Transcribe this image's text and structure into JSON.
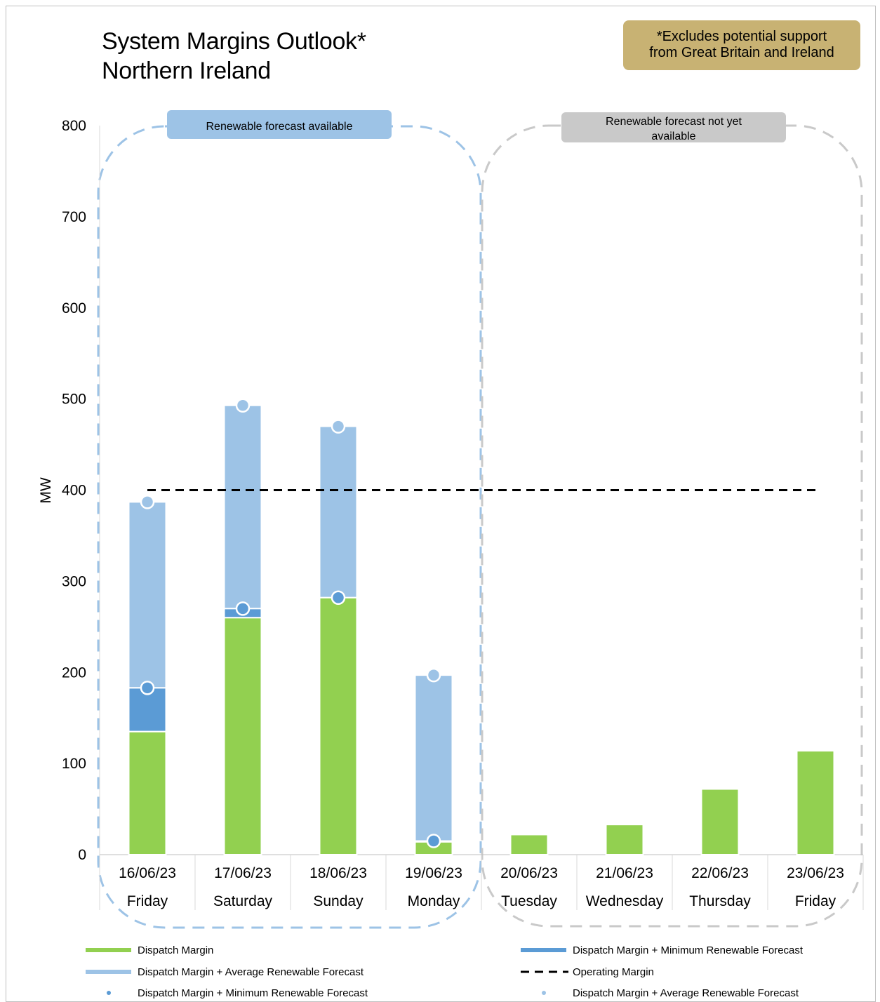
{
  "title_line1": "System Margins Outlook*",
  "title_line2": "Northern Ireland",
  "note_line1": "*Excludes potential support",
  "note_line2": "from Great Britain and Ireland",
  "region_labels": {
    "available": "Renewable forecast available",
    "not_available_line1": "Renewable forecast not yet",
    "not_available_line2": "available"
  },
  "colors": {
    "dispatch": "#92d050",
    "minimum": "#5b9bd5",
    "average": "#9dc3e6",
    "available_region": "#9dc3e6",
    "not_available_region": "#c9c9c9",
    "operating": "#000000",
    "note_box": "#c8b273"
  },
  "chart_data": {
    "type": "bar",
    "ylabel": "MW",
    "ylim": [
      0,
      800
    ],
    "yticks": [
      0,
      100,
      200,
      300,
      400,
      500,
      600,
      700,
      800
    ],
    "categories": [
      "16/06/23",
      "17/06/23",
      "18/06/23",
      "19/06/23",
      "20/06/23",
      "21/06/23",
      "22/06/23",
      "23/06/23"
    ],
    "days": [
      "Friday",
      "Saturday",
      "Sunday",
      "Monday",
      "Tuesday",
      "Wednesday",
      "Thursday",
      "Friday"
    ],
    "series": [
      {
        "name": "Dispatch Margin",
        "values": [
          135,
          260,
          282,
          14,
          22,
          33,
          72,
          114
        ]
      },
      {
        "name": "Dispatch Margin + Minimum Renewable Forecast",
        "values": [
          183,
          270,
          282,
          15,
          null,
          null,
          null,
          null
        ]
      },
      {
        "name": "Dispatch Margin + Average Renewable Forecast",
        "values": [
          387,
          493,
          470,
          197,
          null,
          null,
          null,
          null
        ]
      },
      {
        "name": "Operating Margin",
        "values": [
          400,
          400,
          400,
          400,
          400,
          400,
          400,
          400
        ]
      }
    ],
    "legend": [
      {
        "label": "Dispatch Margin",
        "style": "bar-green"
      },
      {
        "label": "Dispatch Margin + Minimum Renewable Forecast",
        "style": "bar-blue"
      },
      {
        "label": "Dispatch Margin + Average Renewable Forecast",
        "style": "bar-light"
      },
      {
        "label": "Operating Margin",
        "style": "dashed"
      },
      {
        "label": "Dispatch Margin + Minimum Renewable Forecast",
        "style": "dot-blue"
      },
      {
        "label": "Dispatch Margin + Average Renewable Forecast",
        "style": "dot-light"
      }
    ]
  }
}
